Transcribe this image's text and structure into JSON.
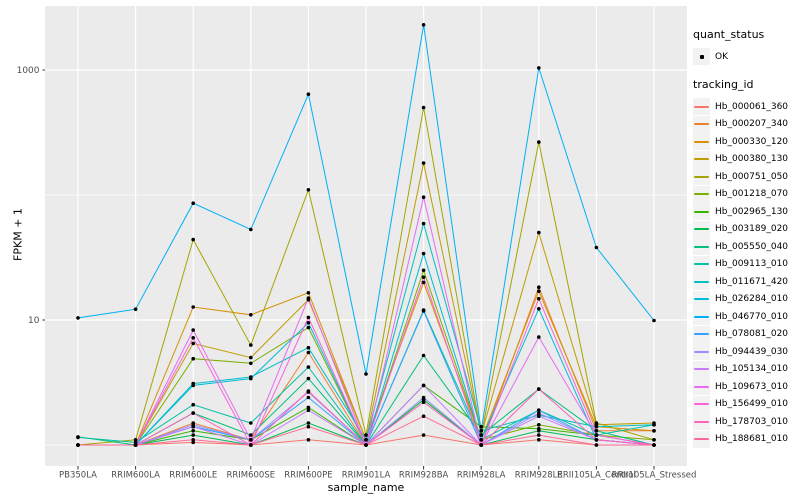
{
  "figure": {
    "background": "#FFFFFF",
    "panel_background": "#EBEBEB",
    "gridline_color": "#FFFFFF",
    "tick_label_color": "#4D4D4D",
    "axis_title_color": "#000000",
    "point_color": "#000000",
    "legend_key_background": "#F2F2F2"
  },
  "legend": {
    "quant_status": {
      "title": "quant_status",
      "items": [
        {
          "label": "OK",
          "marker": "black-point"
        }
      ]
    },
    "tracking_id": {
      "title": "tracking_id"
    }
  },
  "chart_data": {
    "type": "line",
    "title": "",
    "xlabel": "sample_name",
    "ylabel": "FPKM + 1",
    "y_scale": "log10",
    "y_ticks": [
      10,
      1000
    ],
    "y_minor_gridlines": [
      1,
      100
    ],
    "ylim": [
      0.68,
      3250
    ],
    "grid": true,
    "legend_position": "right",
    "point_marker": "black-dot",
    "categories": [
      "PB350LA",
      "RRIM600LA",
      "RRIM600LE",
      "RRIM600SE",
      "RRIM600PE",
      "RRIM901LA",
      "RRIM928BA",
      "RRIM928LA",
      "RRIM928LE",
      "RRII105LA_Control",
      "RRII105LA_Stressed"
    ],
    "series": [
      {
        "name": "Hb_000061_360",
        "color": "#F8766D",
        "values": [
          1.0,
          1.0,
          1.05,
          1.0,
          1.1,
          1.0,
          1.2,
          1.0,
          1.1,
          1.0,
          1.0
        ]
      },
      {
        "name": "Hb_000207_340",
        "color": "#EA8331",
        "values": [
          1.0,
          1.0,
          1.5,
          1.1,
          5.5,
          1.0,
          2.3,
          1.0,
          18.3,
          1.3,
          1.3
        ]
      },
      {
        "name": "Hb_000330_120",
        "color": "#D89000",
        "values": [
          1.0,
          1.0,
          12.7,
          11.0,
          16.5,
          1.1,
          20.0,
          1.1,
          17.0,
          1.4,
          1.3
        ]
      },
      {
        "name": "Hb_000380_130",
        "color": "#C09B00",
        "values": [
          1.0,
          1.0,
          6.5,
          5.0,
          14.5,
          1.1,
          180.0,
          1.2,
          50.0,
          1.45,
          1.5
        ]
      },
      {
        "name": "Hb_000751_050",
        "color": "#A3A500",
        "values": [
          1.0,
          1.1,
          44.0,
          6.3,
          110.0,
          1.2,
          500.0,
          1.2,
          265.0,
          1.5,
          1.1
        ]
      },
      {
        "name": "Hb_001218_070",
        "color": "#7CAE00",
        "values": [
          1.0,
          1.0,
          4.9,
          4.5,
          8.7,
          1.0,
          25.0,
          1.1,
          1.45,
          1.2,
          1.1
        ]
      },
      {
        "name": "Hb_002965_130",
        "color": "#39B600",
        "values": [
          1.0,
          1.0,
          1.3,
          1.1,
          2.0,
          1.0,
          3.0,
          1.4,
          1.35,
          1.2,
          1.0
        ]
      },
      {
        "name": "Hb_003189_020",
        "color": "#00BB4E",
        "values": [
          1.0,
          1.0,
          1.2,
          1.0,
          1.5,
          1.0,
          2.3,
          1.0,
          1.3,
          1.1,
          1.0
        ]
      },
      {
        "name": "Hb_005550_040",
        "color": "#00BF7D",
        "values": [
          1.16,
          1.0,
          1.8,
          1.2,
          3.4,
          1.0,
          5.2,
          1.2,
          2.8,
          1.3,
          1.0
        ]
      },
      {
        "name": "Hb_009113_010",
        "color": "#00C1A3",
        "values": [
          1.15,
          1.05,
          2.1,
          1.5,
          4.2,
          1.0,
          12.0,
          1.1,
          1.9,
          1.2,
          1.45
        ]
      },
      {
        "name": "Hb_011671_420",
        "color": "#00BFC4",
        "values": [
          1.0,
          1.0,
          3.1,
          3.5,
          6.0,
          1.1,
          59.0,
          1.3,
          1.73,
          1.4,
          1.45
        ]
      },
      {
        "name": "Hb_026284_010",
        "color": "#00BBDA",
        "values": [
          1.0,
          1.0,
          3.0,
          3.4,
          9.5,
          1.0,
          34.0,
          1.1,
          12.3,
          1.1,
          1.0
        ]
      },
      {
        "name": "Hb_046770_010",
        "color": "#00B0F6",
        "values": [
          10.4,
          12.2,
          86.0,
          53.0,
          640.0,
          3.7,
          2300.0,
          1.3,
          1040.0,
          38.0,
          9.9
        ]
      },
      {
        "name": "Hb_078081_020",
        "color": "#35A2FF",
        "values": [
          1.0,
          1.0,
          1.4,
          1.1,
          2.4,
          1.0,
          11.8,
          1.0,
          1.9,
          1.1,
          1.0
        ]
      },
      {
        "name": "Hb_094439_030",
        "color": "#9590FF",
        "values": [
          1.0,
          1.0,
          1.45,
          1.1,
          2.65,
          1.0,
          2.4,
          1.0,
          1.8,
          1.1,
          1.0
        ]
      },
      {
        "name": "Hb_105134_010",
        "color": "#C77CFF",
        "values": [
          1.0,
          1.0,
          1.4,
          1.0,
          1.9,
          1.0,
          3.0,
          1.0,
          1.7,
          1.1,
          1.0
        ]
      },
      {
        "name": "Hb_109673_010",
        "color": "#E76BF3",
        "values": [
          1.0,
          1.0,
          8.3,
          1.1,
          15.0,
          1.0,
          96.0,
          1.0,
          7.3,
          1.2,
          1.0
        ]
      },
      {
        "name": "Hb_156499_010",
        "color": "#FA62DB",
        "values": [
          1.0,
          1.0,
          7.2,
          1.0,
          10.5,
          1.0,
          22.0,
          1.0,
          14.8,
          1.2,
          1.0
        ]
      },
      {
        "name": "Hb_178703_010",
        "color": "#FF62BC",
        "values": [
          1.0,
          1.0,
          1.8,
          1.0,
          2.7,
          1.0,
          2.2,
          1.0,
          2.8,
          1.1,
          1.0
        ]
      },
      {
        "name": "Hb_188681_010",
        "color": "#FF6A98",
        "values": [
          1.0,
          1.0,
          1.1,
          1.0,
          1.4,
          1.0,
          1.7,
          1.0,
          1.2,
          1.0,
          1.0
        ]
      }
    ]
  }
}
